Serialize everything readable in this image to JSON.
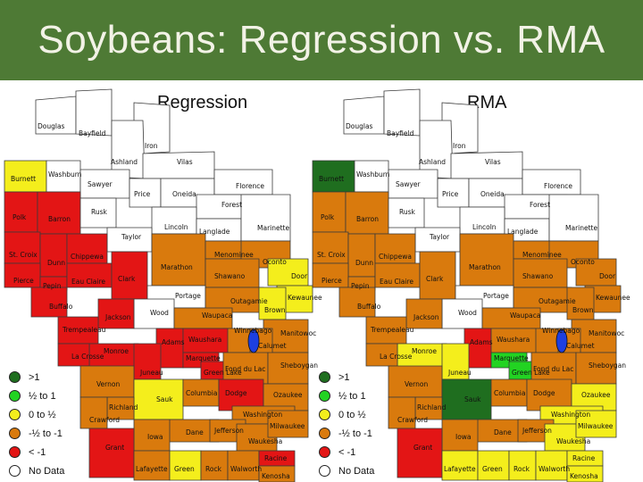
{
  "title": "Soybeans: Regression vs. RMA",
  "colors": {
    "banner": "#4e7a35",
    "gt1": "#1f6e1f",
    "half_to_1": "#22d322",
    "zero_to_half": "#f4ee1c",
    "neg_half_to_neg1": "#d97a0d",
    "lt_neg1": "#e31515",
    "no_data": "#ffffff",
    "lake": "#1d3fe0"
  },
  "legend": [
    {
      "label": ">1",
      "color_key": "gt1"
    },
    {
      "label": "½ to 1",
      "color_key": "half_to_1"
    },
    {
      "label": "0 to ½",
      "color_key": "zero_to_half"
    },
    {
      "label": "-½ to -1",
      "color_key": "neg_half_to_neg1"
    },
    {
      "label": "< -1",
      "color_key": "lt_neg1"
    },
    {
      "label": "No Data",
      "color_key": "no_data"
    }
  ],
  "maps": [
    {
      "title": "Regression",
      "counties": [
        {
          "name": "Douglas",
          "cls": "no_data"
        },
        {
          "name": "Bayfield",
          "cls": "no_data"
        },
        {
          "name": "Iron",
          "cls": "no_data"
        },
        {
          "name": "Ashland",
          "cls": "no_data"
        },
        {
          "name": "Vilas",
          "cls": "no_data"
        },
        {
          "name": "Burnett",
          "cls": "zero_to_half"
        },
        {
          "name": "Washburn",
          "cls": "no_data"
        },
        {
          "name": "Sawyer",
          "cls": "no_data"
        },
        {
          "name": "Price",
          "cls": "no_data"
        },
        {
          "name": "Oneida",
          "cls": "no_data"
        },
        {
          "name": "Florence",
          "cls": "no_data"
        },
        {
          "name": "Forest",
          "cls": "no_data"
        },
        {
          "name": "Polk",
          "cls": "lt_neg1"
        },
        {
          "name": "Barron",
          "cls": "lt_neg1"
        },
        {
          "name": "Rusk",
          "cls": "no_data"
        },
        {
          "name": "Lincoln",
          "cls": "no_data"
        },
        {
          "name": "Langlade",
          "cls": "no_data"
        },
        {
          "name": "Marinette",
          "cls": "no_data"
        },
        {
          "name": "Taylor",
          "cls": "no_data"
        },
        {
          "name": "St. Croix",
          "cls": "lt_neg1"
        },
        {
          "name": "Dunn",
          "cls": "lt_neg1"
        },
        {
          "name": "Chippewa",
          "cls": "lt_neg1"
        },
        {
          "name": "Marathon",
          "cls": "neg_half_to_neg1"
        },
        {
          "name": "Menominee",
          "cls": "neg_half_to_neg1"
        },
        {
          "name": "Oconto",
          "cls": "neg_half_to_neg1"
        },
        {
          "name": "Pierce",
          "cls": "lt_neg1"
        },
        {
          "name": "Pepin",
          "cls": "lt_neg1"
        },
        {
          "name": "Eau Claire",
          "cls": "lt_neg1"
        },
        {
          "name": "Clark",
          "cls": "lt_neg1"
        },
        {
          "name": "Shawano",
          "cls": "neg_half_to_neg1"
        },
        {
          "name": "Door",
          "cls": "zero_to_half"
        },
        {
          "name": "Buffalo",
          "cls": "lt_neg1"
        },
        {
          "name": "Portage",
          "cls": "no_data"
        },
        {
          "name": "Outagamie",
          "cls": "neg_half_to_neg1"
        },
        {
          "name": "Kewaunee",
          "cls": "zero_to_half"
        },
        {
          "name": "Brown",
          "cls": "zero_to_half"
        },
        {
          "name": "Wood",
          "cls": "no_data"
        },
        {
          "name": "Waupaca",
          "cls": "neg_half_to_neg1"
        },
        {
          "name": "Jackson",
          "cls": "lt_neg1"
        },
        {
          "name": "Trempealeau",
          "cls": "lt_neg1"
        },
        {
          "name": "Manitowoc",
          "cls": "neg_half_to_neg1"
        },
        {
          "name": "Winnebago",
          "cls": "neg_half_to_neg1"
        },
        {
          "name": "Calumet",
          "cls": "neg_half_to_neg1"
        },
        {
          "name": "Monroe",
          "cls": "lt_neg1"
        },
        {
          "name": "Adams",
          "cls": "lt_neg1"
        },
        {
          "name": "Waushara",
          "cls": "lt_neg1"
        },
        {
          "name": "La Crosse",
          "cls": "lt_neg1"
        },
        {
          "name": "Marquette",
          "cls": "lt_neg1"
        },
        {
          "name": "Green Lake",
          "cls": "lt_neg1"
        },
        {
          "name": "Juneau",
          "cls": "lt_neg1"
        },
        {
          "name": "Fond du Lac",
          "cls": "neg_half_to_neg1"
        },
        {
          "name": "Sheboygan",
          "cls": "neg_half_to_neg1"
        },
        {
          "name": "Vernon",
          "cls": "neg_half_to_neg1"
        },
        {
          "name": "Sauk",
          "cls": "zero_to_half"
        },
        {
          "name": "Columbia",
          "cls": "neg_half_to_neg1"
        },
        {
          "name": "Dodge",
          "cls": "lt_neg1"
        },
        {
          "name": "Ozaukee",
          "cls": "neg_half_to_neg1"
        },
        {
          "name": "Richland",
          "cls": "neg_half_to_neg1"
        },
        {
          "name": "Crawford",
          "cls": "neg_half_to_neg1"
        },
        {
          "name": "Washington",
          "cls": "neg_half_to_neg1"
        },
        {
          "name": "Dane",
          "cls": "neg_half_to_neg1"
        },
        {
          "name": "Jefferson",
          "cls": "neg_half_to_neg1"
        },
        {
          "name": "Iowa",
          "cls": "neg_half_to_neg1"
        },
        {
          "name": "Waukesha",
          "cls": "neg_half_to_neg1"
        },
        {
          "name": "Milwaukee",
          "cls": "neg_half_to_neg1"
        },
        {
          "name": "Grant",
          "cls": "lt_neg1"
        },
        {
          "name": "Lafayette",
          "cls": "neg_half_to_neg1"
        },
        {
          "name": "Green",
          "cls": "zero_to_half"
        },
        {
          "name": "Rock",
          "cls": "neg_half_to_neg1"
        },
        {
          "name": "Walworth",
          "cls": "neg_half_to_neg1"
        },
        {
          "name": "Racine",
          "cls": "lt_neg1"
        },
        {
          "name": "Kenosha",
          "cls": "neg_half_to_neg1"
        }
      ]
    },
    {
      "title": "RMA",
      "counties": [
        {
          "name": "Douglas",
          "cls": "no_data"
        },
        {
          "name": "Bayfield",
          "cls": "no_data"
        },
        {
          "name": "Iron",
          "cls": "no_data"
        },
        {
          "name": "Ashland",
          "cls": "no_data"
        },
        {
          "name": "Vilas",
          "cls": "no_data"
        },
        {
          "name": "Burnett",
          "cls": "gt1"
        },
        {
          "name": "Washburn",
          "cls": "no_data"
        },
        {
          "name": "Sawyer",
          "cls": "no_data"
        },
        {
          "name": "Price",
          "cls": "no_data"
        },
        {
          "name": "Oneida",
          "cls": "no_data"
        },
        {
          "name": "Florence",
          "cls": "no_data"
        },
        {
          "name": "Forest",
          "cls": "no_data"
        },
        {
          "name": "Polk",
          "cls": "neg_half_to_neg1"
        },
        {
          "name": "Barron",
          "cls": "neg_half_to_neg1"
        },
        {
          "name": "Rusk",
          "cls": "no_data"
        },
        {
          "name": "Lincoln",
          "cls": "no_data"
        },
        {
          "name": "Langlade",
          "cls": "no_data"
        },
        {
          "name": "Marinette",
          "cls": "no_data"
        },
        {
          "name": "Taylor",
          "cls": "no_data"
        },
        {
          "name": "St. Croix",
          "cls": "neg_half_to_neg1"
        },
        {
          "name": "Dunn",
          "cls": "neg_half_to_neg1"
        },
        {
          "name": "Chippewa",
          "cls": "neg_half_to_neg1"
        },
        {
          "name": "Marathon",
          "cls": "neg_half_to_neg1"
        },
        {
          "name": "Menominee",
          "cls": "neg_half_to_neg1"
        },
        {
          "name": "Oconto",
          "cls": "neg_half_to_neg1"
        },
        {
          "name": "Pierce",
          "cls": "neg_half_to_neg1"
        },
        {
          "name": "Pepin",
          "cls": "neg_half_to_neg1"
        },
        {
          "name": "Eau Claire",
          "cls": "neg_half_to_neg1"
        },
        {
          "name": "Clark",
          "cls": "neg_half_to_neg1"
        },
        {
          "name": "Shawano",
          "cls": "neg_half_to_neg1"
        },
        {
          "name": "Door",
          "cls": "neg_half_to_neg1"
        },
        {
          "name": "Buffalo",
          "cls": "neg_half_to_neg1"
        },
        {
          "name": "Portage",
          "cls": "no_data"
        },
        {
          "name": "Outagamie",
          "cls": "neg_half_to_neg1"
        },
        {
          "name": "Kewaunee",
          "cls": "neg_half_to_neg1"
        },
        {
          "name": "Brown",
          "cls": "neg_half_to_neg1"
        },
        {
          "name": "Wood",
          "cls": "no_data"
        },
        {
          "name": "Waupaca",
          "cls": "neg_half_to_neg1"
        },
        {
          "name": "Jackson",
          "cls": "neg_half_to_neg1"
        },
        {
          "name": "Trempealeau",
          "cls": "neg_half_to_neg1"
        },
        {
          "name": "Manitowoc",
          "cls": "neg_half_to_neg1"
        },
        {
          "name": "Winnebago",
          "cls": "neg_half_to_neg1"
        },
        {
          "name": "Calumet",
          "cls": "neg_half_to_neg1"
        },
        {
          "name": "Monroe",
          "cls": "zero_to_half"
        },
        {
          "name": "Adams",
          "cls": "lt_neg1"
        },
        {
          "name": "Waushara",
          "cls": "neg_half_to_neg1"
        },
        {
          "name": "La Crosse",
          "cls": "neg_half_to_neg1"
        },
        {
          "name": "Marquette",
          "cls": "half_to_1"
        },
        {
          "name": "Green Lake",
          "cls": "half_to_1"
        },
        {
          "name": "Juneau",
          "cls": "zero_to_half"
        },
        {
          "name": "Fond du Lac",
          "cls": "neg_half_to_neg1"
        },
        {
          "name": "Sheboygan",
          "cls": "neg_half_to_neg1"
        },
        {
          "name": "Vernon",
          "cls": "neg_half_to_neg1"
        },
        {
          "name": "Sauk",
          "cls": "gt1"
        },
        {
          "name": "Columbia",
          "cls": "neg_half_to_neg1"
        },
        {
          "name": "Dodge",
          "cls": "neg_half_to_neg1"
        },
        {
          "name": "Ozaukee",
          "cls": "zero_to_half"
        },
        {
          "name": "Richland",
          "cls": "neg_half_to_neg1"
        },
        {
          "name": "Crawford",
          "cls": "neg_half_to_neg1"
        },
        {
          "name": "Washington",
          "cls": "zero_to_half"
        },
        {
          "name": "Dane",
          "cls": "neg_half_to_neg1"
        },
        {
          "name": "Jefferson",
          "cls": "neg_half_to_neg1"
        },
        {
          "name": "Iowa",
          "cls": "neg_half_to_neg1"
        },
        {
          "name": "Waukesha",
          "cls": "zero_to_half"
        },
        {
          "name": "Milwaukee",
          "cls": "zero_to_half"
        },
        {
          "name": "Grant",
          "cls": "lt_neg1"
        },
        {
          "name": "Lafayette",
          "cls": "zero_to_half"
        },
        {
          "name": "Green",
          "cls": "zero_to_half"
        },
        {
          "name": "Rock",
          "cls": "zero_to_half"
        },
        {
          "name": "Walworth",
          "cls": "zero_to_half"
        },
        {
          "name": "Racine",
          "cls": "zero_to_half"
        },
        {
          "name": "Kenosha",
          "cls": "zero_to_half"
        }
      ]
    }
  ]
}
